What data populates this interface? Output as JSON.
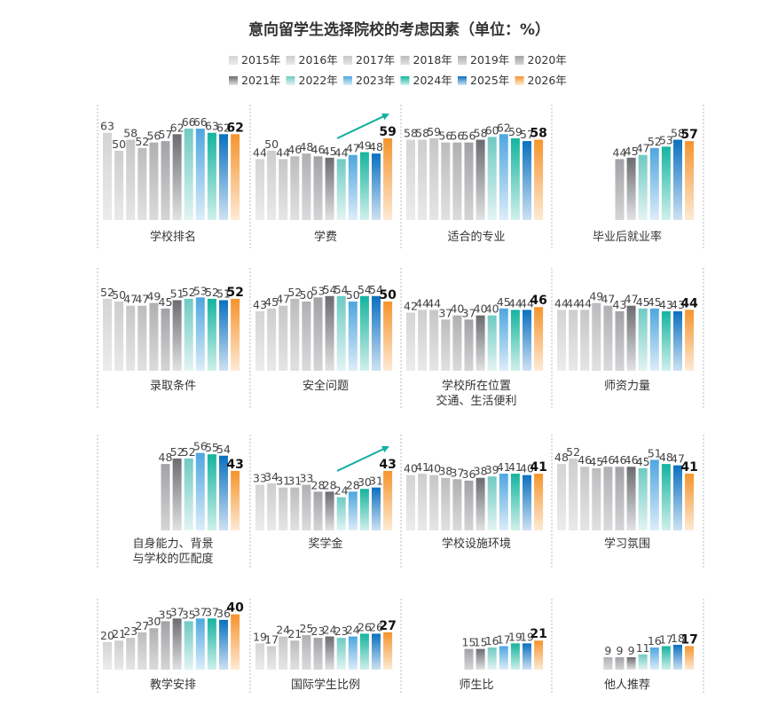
{
  "chart_data": {
    "type": "bar",
    "title": "意向留学生选择院校的考虑因素（单位：%）",
    "legend": {
      "placement": "top",
      "entries": [
        "2015年",
        "2016年",
        "2017年",
        "2018年",
        "2019年",
        "2020年",
        "2021年",
        "2022年",
        "2023年",
        "2024年",
        "2025年",
        "2026年"
      ]
    },
    "years": [
      2015,
      2016,
      2017,
      2018,
      2019,
      2020,
      2021,
      2022,
      2023,
      2024,
      2025,
      2026
    ],
    "colors": [
      "#d4d4d6",
      "#cdcdcf",
      "#c6c6c8",
      "#bcbcbf",
      "#b0b0b3",
      "#a2a2a6",
      "#6b6c71",
      "#6fcac3",
      "#4ea6e0",
      "#14b49f",
      "#0b70bf",
      "#f5942c"
    ],
    "highlight_year": 2026,
    "panels": [
      {
        "label": [
          "学校排名"
        ],
        "values": [
          63,
          50,
          58,
          52,
          56,
          57,
          62,
          66,
          66,
          63,
          62,
          62
        ]
      },
      {
        "label": [
          "学费"
        ],
        "values": [
          44,
          50,
          44,
          46,
          48,
          46,
          45,
          44,
          47,
          49,
          48,
          59
        ],
        "trend_arrow": true
      },
      {
        "label": [
          "适合的专业"
        ],
        "values": [
          58,
          58,
          59,
          56,
          56,
          56,
          58,
          60,
          62,
          59,
          57,
          58
        ]
      },
      {
        "label": [
          "毕业后就业率"
        ],
        "values": [
          null,
          null,
          null,
          null,
          null,
          44,
          45,
          47,
          52,
          53,
          58,
          57
        ]
      },
      {
        "label": [
          "录取条件"
        ],
        "values": [
          52,
          50,
          47,
          47,
          49,
          45,
          51,
          52,
          53,
          52,
          51,
          52
        ]
      },
      {
        "label": [
          "安全问题"
        ],
        "values": [
          43,
          45,
          47,
          52,
          50,
          53,
          54,
          54,
          50,
          54,
          54,
          50
        ]
      },
      {
        "label": [
          "学校所在位置",
          "交通、生活便利"
        ],
        "values": [
          42,
          44,
          44,
          37,
          40,
          37,
          40,
          40,
          45,
          44,
          44,
          46
        ]
      },
      {
        "label": [
          "师资力量"
        ],
        "values": [
          44,
          44,
          44,
          49,
          47,
          43,
          47,
          45,
          45,
          43,
          43,
          44
        ]
      },
      {
        "label": [
          "自身能力、背景",
          "与学校的匹配度"
        ],
        "values": [
          null,
          null,
          null,
          null,
          null,
          48,
          52,
          52,
          56,
          55,
          54,
          43
        ]
      },
      {
        "label": [
          "奖学金"
        ],
        "values": [
          33,
          34,
          31,
          31,
          33,
          28,
          28,
          24,
          28,
          30,
          31,
          43
        ],
        "trend_arrow": true
      },
      {
        "label": [
          "学校设施环境"
        ],
        "values": [
          40,
          41,
          40,
          38,
          37,
          36,
          38,
          39,
          41,
          41,
          40,
          41
        ]
      },
      {
        "label": [
          "学习氛围"
        ],
        "values": [
          48,
          52,
          46,
          45,
          46,
          46,
          46,
          45,
          51,
          48,
          47,
          41
        ]
      },
      {
        "label": [
          "教学安排"
        ],
        "values": [
          20,
          21,
          23,
          27,
          30,
          35,
          37,
          35,
          37,
          37,
          36,
          40
        ]
      },
      {
        "label": [
          "国际学生比例"
        ],
        "values": [
          19,
          17,
          24,
          21,
          25,
          23,
          24,
          23,
          24,
          26,
          26,
          27
        ]
      },
      {
        "label": [
          "师生比"
        ],
        "values": [
          null,
          null,
          null,
          null,
          null,
          15,
          15,
          16,
          17,
          19,
          19,
          21
        ]
      },
      {
        "label": [
          "他人推荐"
        ],
        "values": [
          null,
          null,
          null,
          null,
          9,
          9,
          9,
          11,
          16,
          17,
          18,
          17
        ]
      }
    ],
    "arrow_color": "#14b0a0",
    "grid": false
  }
}
